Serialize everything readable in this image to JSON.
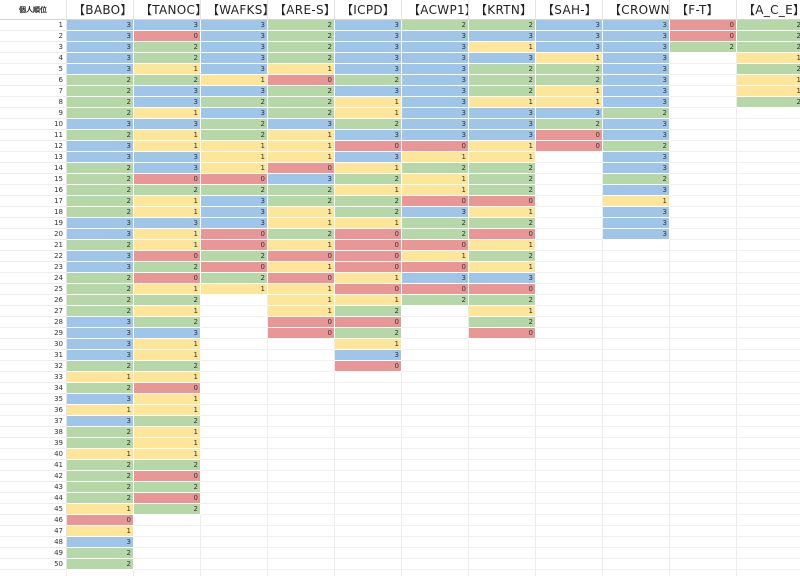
{
  "corner_label": "個人順位",
  "colors": {
    "0": "#e99696",
    "1": "#fde699",
    "2": "#b6d7a8",
    "3": "#9fc5e8"
  },
  "columns": [
    {
      "header": "【BABO】",
      "values": [
        3,
        3,
        3,
        3,
        3,
        2,
        2,
        2,
        2,
        3,
        2,
        3,
        3,
        2,
        2,
        2,
        2,
        2,
        3,
        3,
        2,
        3,
        3,
        2,
        2,
        2,
        2,
        3,
        3,
        3,
        3,
        2,
        1,
        2,
        3,
        1,
        3,
        2,
        2,
        1,
        2,
        2,
        2,
        2,
        1,
        0,
        1,
        3,
        2,
        2
      ]
    },
    {
      "header": "【TANOC】",
      "values": [
        3,
        0,
        2,
        2,
        1,
        2,
        3,
        3,
        1,
        3,
        1,
        1,
        3,
        3,
        0,
        2,
        1,
        1,
        3,
        1,
        1,
        0,
        2,
        0,
        1,
        2,
        1,
        2,
        3,
        1,
        1,
        2,
        1,
        0,
        1,
        1,
        2,
        1,
        1,
        1,
        2,
        0,
        2,
        0,
        2
      ]
    },
    {
      "header": "【WAFKS】",
      "values": [
        3,
        3,
        3,
        3,
        3,
        1,
        3,
        2,
        3,
        2,
        2,
        1,
        1,
        1,
        0,
        2,
        3,
        3,
        3,
        0,
        0,
        2,
        0,
        2,
        1
      ]
    },
    {
      "header": "【ARE-S】",
      "values": [
        2,
        2,
        2,
        2,
        1,
        0,
        2,
        2,
        2,
        3,
        1,
        1,
        1,
        0,
        3,
        2,
        2,
        1,
        1,
        2,
        1,
        0,
        1,
        0,
        1,
        1,
        1,
        0,
        0
      ]
    },
    {
      "header": "【ICPD】",
      "values": [
        3,
        3,
        3,
        3,
        3,
        2,
        3,
        1,
        1,
        2,
        3,
        0,
        3,
        1,
        2,
        1,
        2,
        2,
        1,
        0,
        0,
        0,
        0,
        1,
        0,
        1,
        2,
        0,
        2,
        1,
        3,
        0
      ]
    },
    {
      "header": "【ACWP1】",
      "values": [
        2,
        3,
        3,
        3,
        3,
        3,
        3,
        3,
        3,
        3,
        3,
        0,
        1,
        2,
        1,
        1,
        0,
        3,
        2,
        2,
        0,
        1,
        0,
        3,
        0,
        2
      ]
    },
    {
      "header": "【KRTN】",
      "values": [
        2,
        3,
        1,
        3,
        2,
        2,
        2,
        1,
        3,
        3,
        3,
        1,
        1,
        2,
        2,
        2,
        0,
        1,
        2,
        0,
        1,
        2,
        1,
        3,
        0,
        2,
        1,
        2,
        0
      ]
    },
    {
      "header": "【SAH-】",
      "values": [
        3,
        3,
        3,
        1,
        2,
        2,
        1,
        1,
        3,
        2,
        0,
        0
      ]
    },
    {
      "header": "【CROWN】",
      "values": [
        3,
        3,
        3,
        3,
        3,
        3,
        3,
        3,
        2,
        3,
        3,
        2,
        3,
        3,
        2,
        3,
        1,
        3,
        3,
        3
      ]
    },
    {
      "header": "【F-T】",
      "values": [
        0,
        0,
        2
      ]
    },
    {
      "header": "【A_C_E】",
      "values": [
        2,
        2,
        2,
        1,
        2,
        1,
        1,
        2
      ]
    }
  ],
  "row_count": 50
}
